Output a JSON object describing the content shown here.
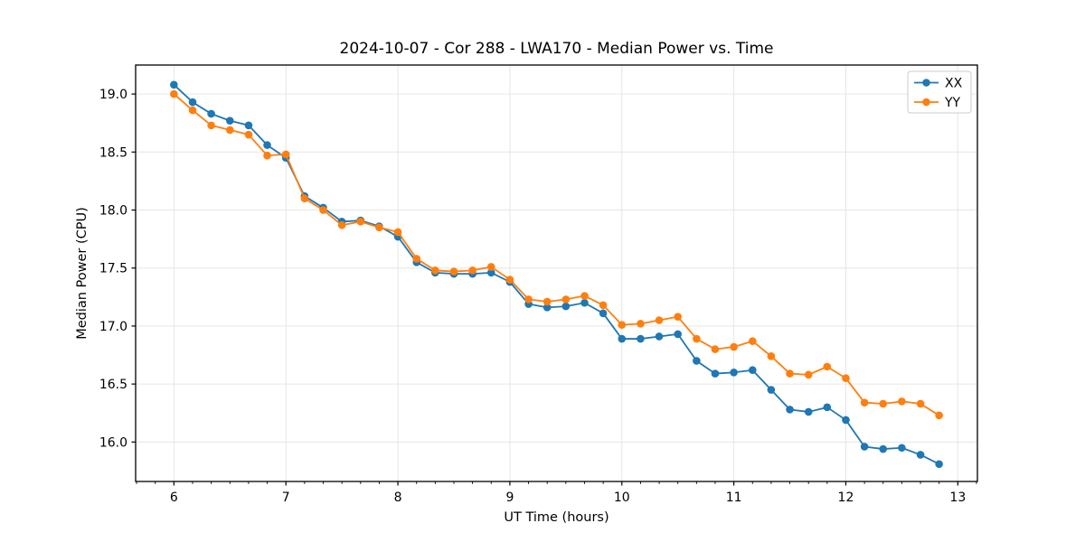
{
  "figure": {
    "background_color": "#ffffff",
    "text_color": "#000000",
    "spine_color": "#000000"
  },
  "chart_data": {
    "type": "line",
    "title": "2024-10-07 - Cor 288 - LWA170 - Median Power vs. Time",
    "xlabel": "UT Time (hours)",
    "ylabel": "Median Power (CPU)",
    "xlim": [
      5.658,
      13.175
    ],
    "ylim": [
      15.66,
      19.25
    ],
    "x_major_ticks": [
      6,
      7,
      8,
      9,
      10,
      11,
      12,
      13
    ],
    "x_minor_step": 0.1666667,
    "y_major_ticks": [
      16.0,
      16.5,
      17.0,
      17.5,
      18.0,
      18.5,
      19.0
    ],
    "grid": "major",
    "grid_color": "#e6e6e6",
    "legend_position": "upper right",
    "sample_interval_hours": 0.1667,
    "x": [
      6.0,
      6.167,
      6.333,
      6.5,
      6.667,
      6.833,
      7.0,
      7.167,
      7.333,
      7.5,
      7.667,
      7.833,
      8.0,
      8.167,
      8.333,
      8.5,
      8.667,
      8.833,
      9.0,
      9.167,
      9.333,
      9.5,
      9.667,
      9.833,
      10.0,
      10.167,
      10.333,
      10.5,
      10.667,
      10.833,
      11.0,
      11.167,
      11.333,
      11.5,
      11.667,
      11.833,
      12.0,
      12.167,
      12.333,
      12.5,
      12.667,
      12.833
    ],
    "series": [
      {
        "name": "XX",
        "color": "#1f77b4",
        "marker": "circle",
        "values": [
          19.08,
          18.93,
          18.83,
          18.77,
          18.73,
          18.56,
          18.45,
          18.12,
          18.02,
          17.9,
          17.91,
          17.86,
          17.77,
          17.55,
          17.46,
          17.45,
          17.45,
          17.46,
          17.38,
          17.19,
          17.16,
          17.17,
          17.2,
          17.11,
          16.89,
          16.89,
          16.91,
          16.93,
          16.7,
          16.59,
          16.6,
          16.62,
          16.45,
          16.28,
          16.26,
          16.3,
          16.19,
          15.96,
          15.94,
          15.95,
          15.89,
          15.81
        ]
      },
      {
        "name": "YY",
        "color": "#ff7f0e",
        "marker": "circle",
        "values": [
          19.0,
          18.86,
          18.73,
          18.69,
          18.65,
          18.47,
          18.48,
          18.1,
          18.0,
          17.87,
          17.9,
          17.85,
          17.81,
          17.58,
          17.48,
          17.47,
          17.48,
          17.51,
          17.4,
          17.23,
          17.21,
          17.23,
          17.26,
          17.18,
          17.01,
          17.02,
          17.05,
          17.08,
          16.89,
          16.8,
          16.82,
          16.87,
          16.74,
          16.59,
          16.58,
          16.65,
          16.55,
          16.34,
          16.33,
          16.35,
          16.33,
          16.23
        ]
      }
    ]
  }
}
